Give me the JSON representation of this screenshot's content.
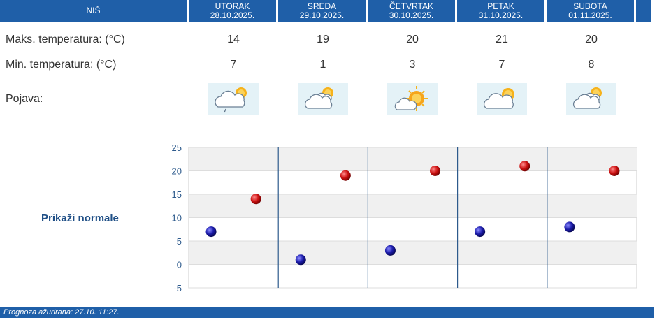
{
  "header": {
    "city": "NIŠ",
    "days": [
      {
        "name": "UTORAK",
        "date": "28.10.2025."
      },
      {
        "name": "SREDA",
        "date": "29.10.2025."
      },
      {
        "name": "ČETVRTAK",
        "date": "30.10.2025."
      },
      {
        "name": "PETAK",
        "date": "31.10.2025."
      },
      {
        "name": "SUBOTA",
        "date": "01.11.2025."
      }
    ]
  },
  "rows": {
    "max_label": "Maks. temperatura: (°C)",
    "min_label": "Min. temperatura: (°C)",
    "icon_label": "Pojava:",
    "max_values": [
      "14",
      "19",
      "20",
      "21",
      "20"
    ],
    "min_values": [
      "7",
      "1",
      "3",
      "7",
      "8"
    ],
    "icons": [
      "cloudy-sun-light-rain-icon",
      "partly-cloudy-icon",
      "mostly-sunny-icon",
      "partly-cloudy-icon",
      "partly-cloudy-icon"
    ]
  },
  "chart_label": "Prikaži normale",
  "footer": "Prognoza ažurirana:  27.10. 11:27.",
  "colors": {
    "header_bg": "#1f5fa8",
    "max_dot": "#cc1111",
    "min_dot": "#1a1aa8",
    "label_blue": "#1f4f86"
  },
  "chart_data": {
    "type": "scatter",
    "categories": [
      "UTORAK",
      "SREDA",
      "ČETVRTAK",
      "PETAK",
      "SUBOTA"
    ],
    "series": [
      {
        "values": [
          7,
          1,
          3,
          7,
          8
        ]
      },
      {
        "values": [
          14,
          19,
          20,
          21,
          20
        ]
      }
    ],
    "yticks": [
      25,
      20,
      15,
      10,
      5,
      0,
      -5
    ],
    "ylim": [
      -5,
      25
    ],
    "grid": true,
    "legend": "none"
  }
}
